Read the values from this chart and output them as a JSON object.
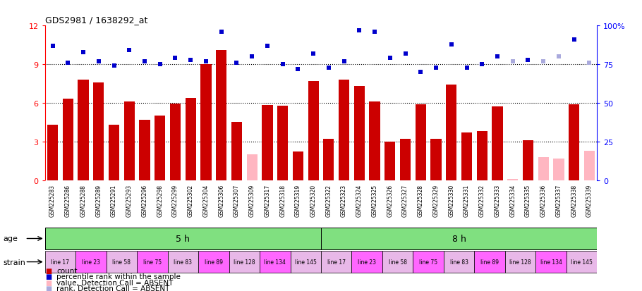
{
  "title": "GDS2981 / 1638292_at",
  "samples": [
    "GSM225283",
    "GSM225286",
    "GSM225288",
    "GSM225289",
    "GSM225291",
    "GSM225293",
    "GSM225296",
    "GSM225298",
    "GSM225299",
    "GSM225302",
    "GSM225304",
    "GSM225306",
    "GSM225307",
    "GSM225309",
    "GSM225317",
    "GSM225318",
    "GSM225319",
    "GSM225320",
    "GSM225322",
    "GSM225323",
    "GSM225324",
    "GSM225325",
    "GSM225326",
    "GSM225327",
    "GSM225328",
    "GSM225329",
    "GSM225330",
    "GSM225331",
    "GSM225332",
    "GSM225333",
    "GSM225334",
    "GSM225335",
    "GSM225336",
    "GSM225337",
    "GSM225338",
    "GSM225339"
  ],
  "count_values": [
    4.3,
    6.3,
    7.8,
    7.6,
    4.3,
    6.1,
    4.7,
    5.0,
    5.95,
    6.4,
    9.0,
    10.1,
    4.5,
    2.0,
    5.85,
    5.8,
    2.2,
    7.7,
    3.2,
    7.8,
    7.3,
    6.1,
    3.0,
    3.2,
    5.9,
    3.2,
    7.4,
    3.7,
    3.8,
    5.7,
    0.1,
    3.1,
    1.8,
    1.7,
    5.9,
    2.3
  ],
  "count_absent": [
    false,
    false,
    false,
    false,
    false,
    false,
    false,
    false,
    false,
    false,
    false,
    false,
    false,
    true,
    false,
    false,
    false,
    false,
    false,
    false,
    false,
    false,
    false,
    false,
    false,
    false,
    false,
    false,
    false,
    false,
    true,
    false,
    true,
    true,
    false,
    true
  ],
  "rank_values": [
    87,
    76,
    83,
    77,
    74,
    84,
    77,
    75,
    79,
    78,
    77,
    96,
    76,
    80,
    87,
    75,
    72,
    82,
    73,
    77,
    97,
    96,
    79,
    82,
    70,
    73,
    88,
    73,
    75,
    80,
    77,
    78,
    77,
    80,
    91,
    76
  ],
  "rank_absent": [
    false,
    false,
    false,
    false,
    false,
    false,
    false,
    false,
    false,
    false,
    false,
    false,
    false,
    false,
    false,
    false,
    false,
    false,
    false,
    false,
    false,
    false,
    false,
    false,
    false,
    false,
    false,
    false,
    false,
    false,
    true,
    false,
    true,
    true,
    false,
    true
  ],
  "left_ylim": [
    0,
    12
  ],
  "right_ylim": [
    0,
    100
  ],
  "left_yticks": [
    0,
    3,
    6,
    9,
    12
  ],
  "right_yticks": [
    0,
    25,
    50,
    75,
    100
  ],
  "bar_color_present": "#CC0000",
  "bar_color_absent": "#FFB6C1",
  "rank_color_present": "#0000CC",
  "rank_color_absent": "#AAAADD",
  "age_green": "#80E080",
  "strain_colors": [
    "#E8B8E8",
    "#FF66FF",
    "#E8B8E8",
    "#FF66FF",
    "#E8B8E8",
    "#FF66FF",
    "#E8B8E8",
    "#FF66FF",
    "#E8B8E8"
  ],
  "strain_labels": [
    "line 17",
    "line 23",
    "line 58",
    "line 75",
    "line 83",
    "line 89",
    "line 128",
    "line 134",
    "line 145"
  ]
}
